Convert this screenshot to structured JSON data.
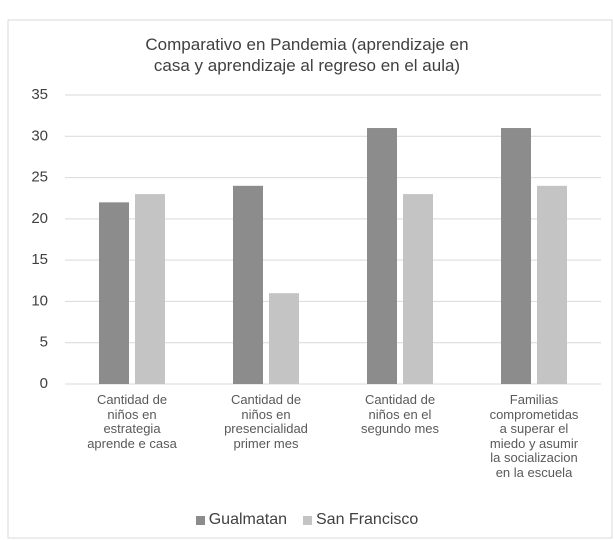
{
  "chart_data": {
    "type": "bar",
    "title": "Comparativo en Pandemia (aprendizaje en\ncasa y aprendizaje al regreso en el aula)",
    "categories": [
      "Cantidad de\nniños en\nestrategia\naprende e casa",
      "Cantidad de\nniños en\npresencialidad\nprimer mes",
      "Cantidad de\nniños en el\nsegundo mes",
      "Familias\ncomprometidas\na superar el\nmiedo y asumir\nla socializacion\nen la escuela"
    ],
    "series": [
      {
        "name": "Gualmatan",
        "color": "#8c8c8c",
        "values": [
          22,
          24,
          31,
          31
        ]
      },
      {
        "name": "San Francisco",
        "color": "#c4c4c4",
        "values": [
          23,
          11,
          23,
          24
        ]
      }
    ],
    "ylim": [
      0,
      35
    ],
    "yticks": [
      0,
      5,
      10,
      15,
      20,
      25,
      30,
      35
    ],
    "grid": true,
    "legend": "bottom"
  }
}
